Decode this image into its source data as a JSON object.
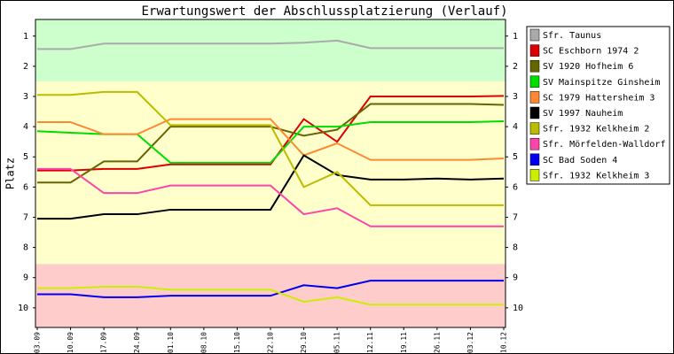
{
  "chart_data": {
    "type": "line",
    "title": "Erwartungswert der Abschlussplatzierung (Verlauf)",
    "y_label": "Platz",
    "categories": [
      "03.09",
      "10.09",
      "17.09",
      "24.09",
      "01.10",
      "08.10",
      "15.10",
      "22.10",
      "29.10",
      "05.11",
      "12.11",
      "19.11",
      "26.11",
      "03.12",
      "10.12"
    ],
    "ylim": [
      0.45,
      10.65
    ],
    "inverted": true,
    "yticks": [
      1,
      2,
      3,
      4,
      5,
      6,
      7,
      8,
      9,
      10
    ],
    "bands": [
      {
        "from": 0.45,
        "to": 2.5,
        "color": "#ccffcc"
      },
      {
        "from": 2.5,
        "to": 8.55,
        "color": "#ffffcc"
      },
      {
        "from": 8.55,
        "to": 10.65,
        "color": "#ffcccc"
      }
    ],
    "legend": "right",
    "series": [
      {
        "name": "Sfr. Taunus",
        "color": "#aaaaaa",
        "values": [
          1.43,
          1.43,
          1.25,
          1.25,
          1.25,
          1.25,
          1.25,
          1.25,
          1.22,
          1.15,
          1.4,
          1.4,
          1.4,
          1.4,
          1.4
        ]
      },
      {
        "name": "SC Eschborn 1974 2",
        "color": "#dd0000",
        "values": [
          5.45,
          5.45,
          5.4,
          5.4,
          5.25,
          5.25,
          5.25,
          5.25,
          3.75,
          4.5,
          3.0,
          3.0,
          3.0,
          3.0,
          2.98
        ]
      },
      {
        "name": "SV 1920 Hofheim 6",
        "color": "#666600",
        "values": [
          5.85,
          5.85,
          5.15,
          5.15,
          4.0,
          4.0,
          4.0,
          4.0,
          4.3,
          4.1,
          3.25,
          3.25,
          3.25,
          3.25,
          3.28
        ]
      },
      {
        "name": "SV Mainspitze Ginsheim",
        "color": "#00dd00",
        "values": [
          4.15,
          4.2,
          4.25,
          4.25,
          5.2,
          5.2,
          5.2,
          5.2,
          4.0,
          4.0,
          3.85,
          3.85,
          3.85,
          3.85,
          3.82
        ]
      },
      {
        "name": "SC 1979 Hattersheim 3",
        "color": "#ff8833",
        "values": [
          3.85,
          3.85,
          4.25,
          4.25,
          3.75,
          3.75,
          3.75,
          3.75,
          4.95,
          4.55,
          5.1,
          5.1,
          5.1,
          5.1,
          5.05
        ]
      },
      {
        "name": "SV 1997 Nauheim",
        "color": "#000000",
        "values": [
          7.05,
          7.05,
          6.9,
          6.9,
          6.75,
          6.75,
          6.75,
          6.75,
          4.95,
          5.6,
          5.75,
          5.75,
          5.72,
          5.75,
          5.72
        ]
      },
      {
        "name": "Sfr. 1932 Kelkheim 2",
        "color": "#bbbb00",
        "values": [
          2.95,
          2.95,
          2.85,
          2.85,
          3.95,
          3.95,
          3.95,
          3.95,
          6.0,
          5.5,
          6.6,
          6.6,
          6.6,
          6.6,
          6.6
        ]
      },
      {
        "name": "Sfr. Mörfelden-Walldorf",
        "color": "#ff44aa",
        "values": [
          5.4,
          5.4,
          6.2,
          6.2,
          5.95,
          5.95,
          5.95,
          5.95,
          6.9,
          6.7,
          7.3,
          7.3,
          7.3,
          7.3,
          7.3
        ]
      },
      {
        "name": "SC Bad Soden 4",
        "color": "#0000ee",
        "values": [
          9.55,
          9.55,
          9.65,
          9.65,
          9.6,
          9.6,
          9.6,
          9.6,
          9.25,
          9.35,
          9.1,
          9.1,
          9.1,
          9.1,
          9.1
        ]
      },
      {
        "name": "Sfr. 1932 Kelkheim 3",
        "color": "#ccee00",
        "values": [
          9.35,
          9.35,
          9.3,
          9.3,
          9.4,
          9.4,
          9.4,
          9.4,
          9.8,
          9.65,
          9.9,
          9.9,
          9.9,
          9.9,
          9.9
        ]
      }
    ]
  }
}
